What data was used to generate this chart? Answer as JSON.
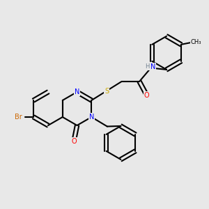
{
  "bg_color": "#e8e8e8",
  "atom_colors": {
    "C": "#000000",
    "N": "#0000ff",
    "O": "#ff0000",
    "S": "#ccaa00",
    "Br": "#cc6600",
    "H": "#708090"
  },
  "bond_color": "#000000",
  "bond_width": 1.5,
  "dbo": 0.09
}
